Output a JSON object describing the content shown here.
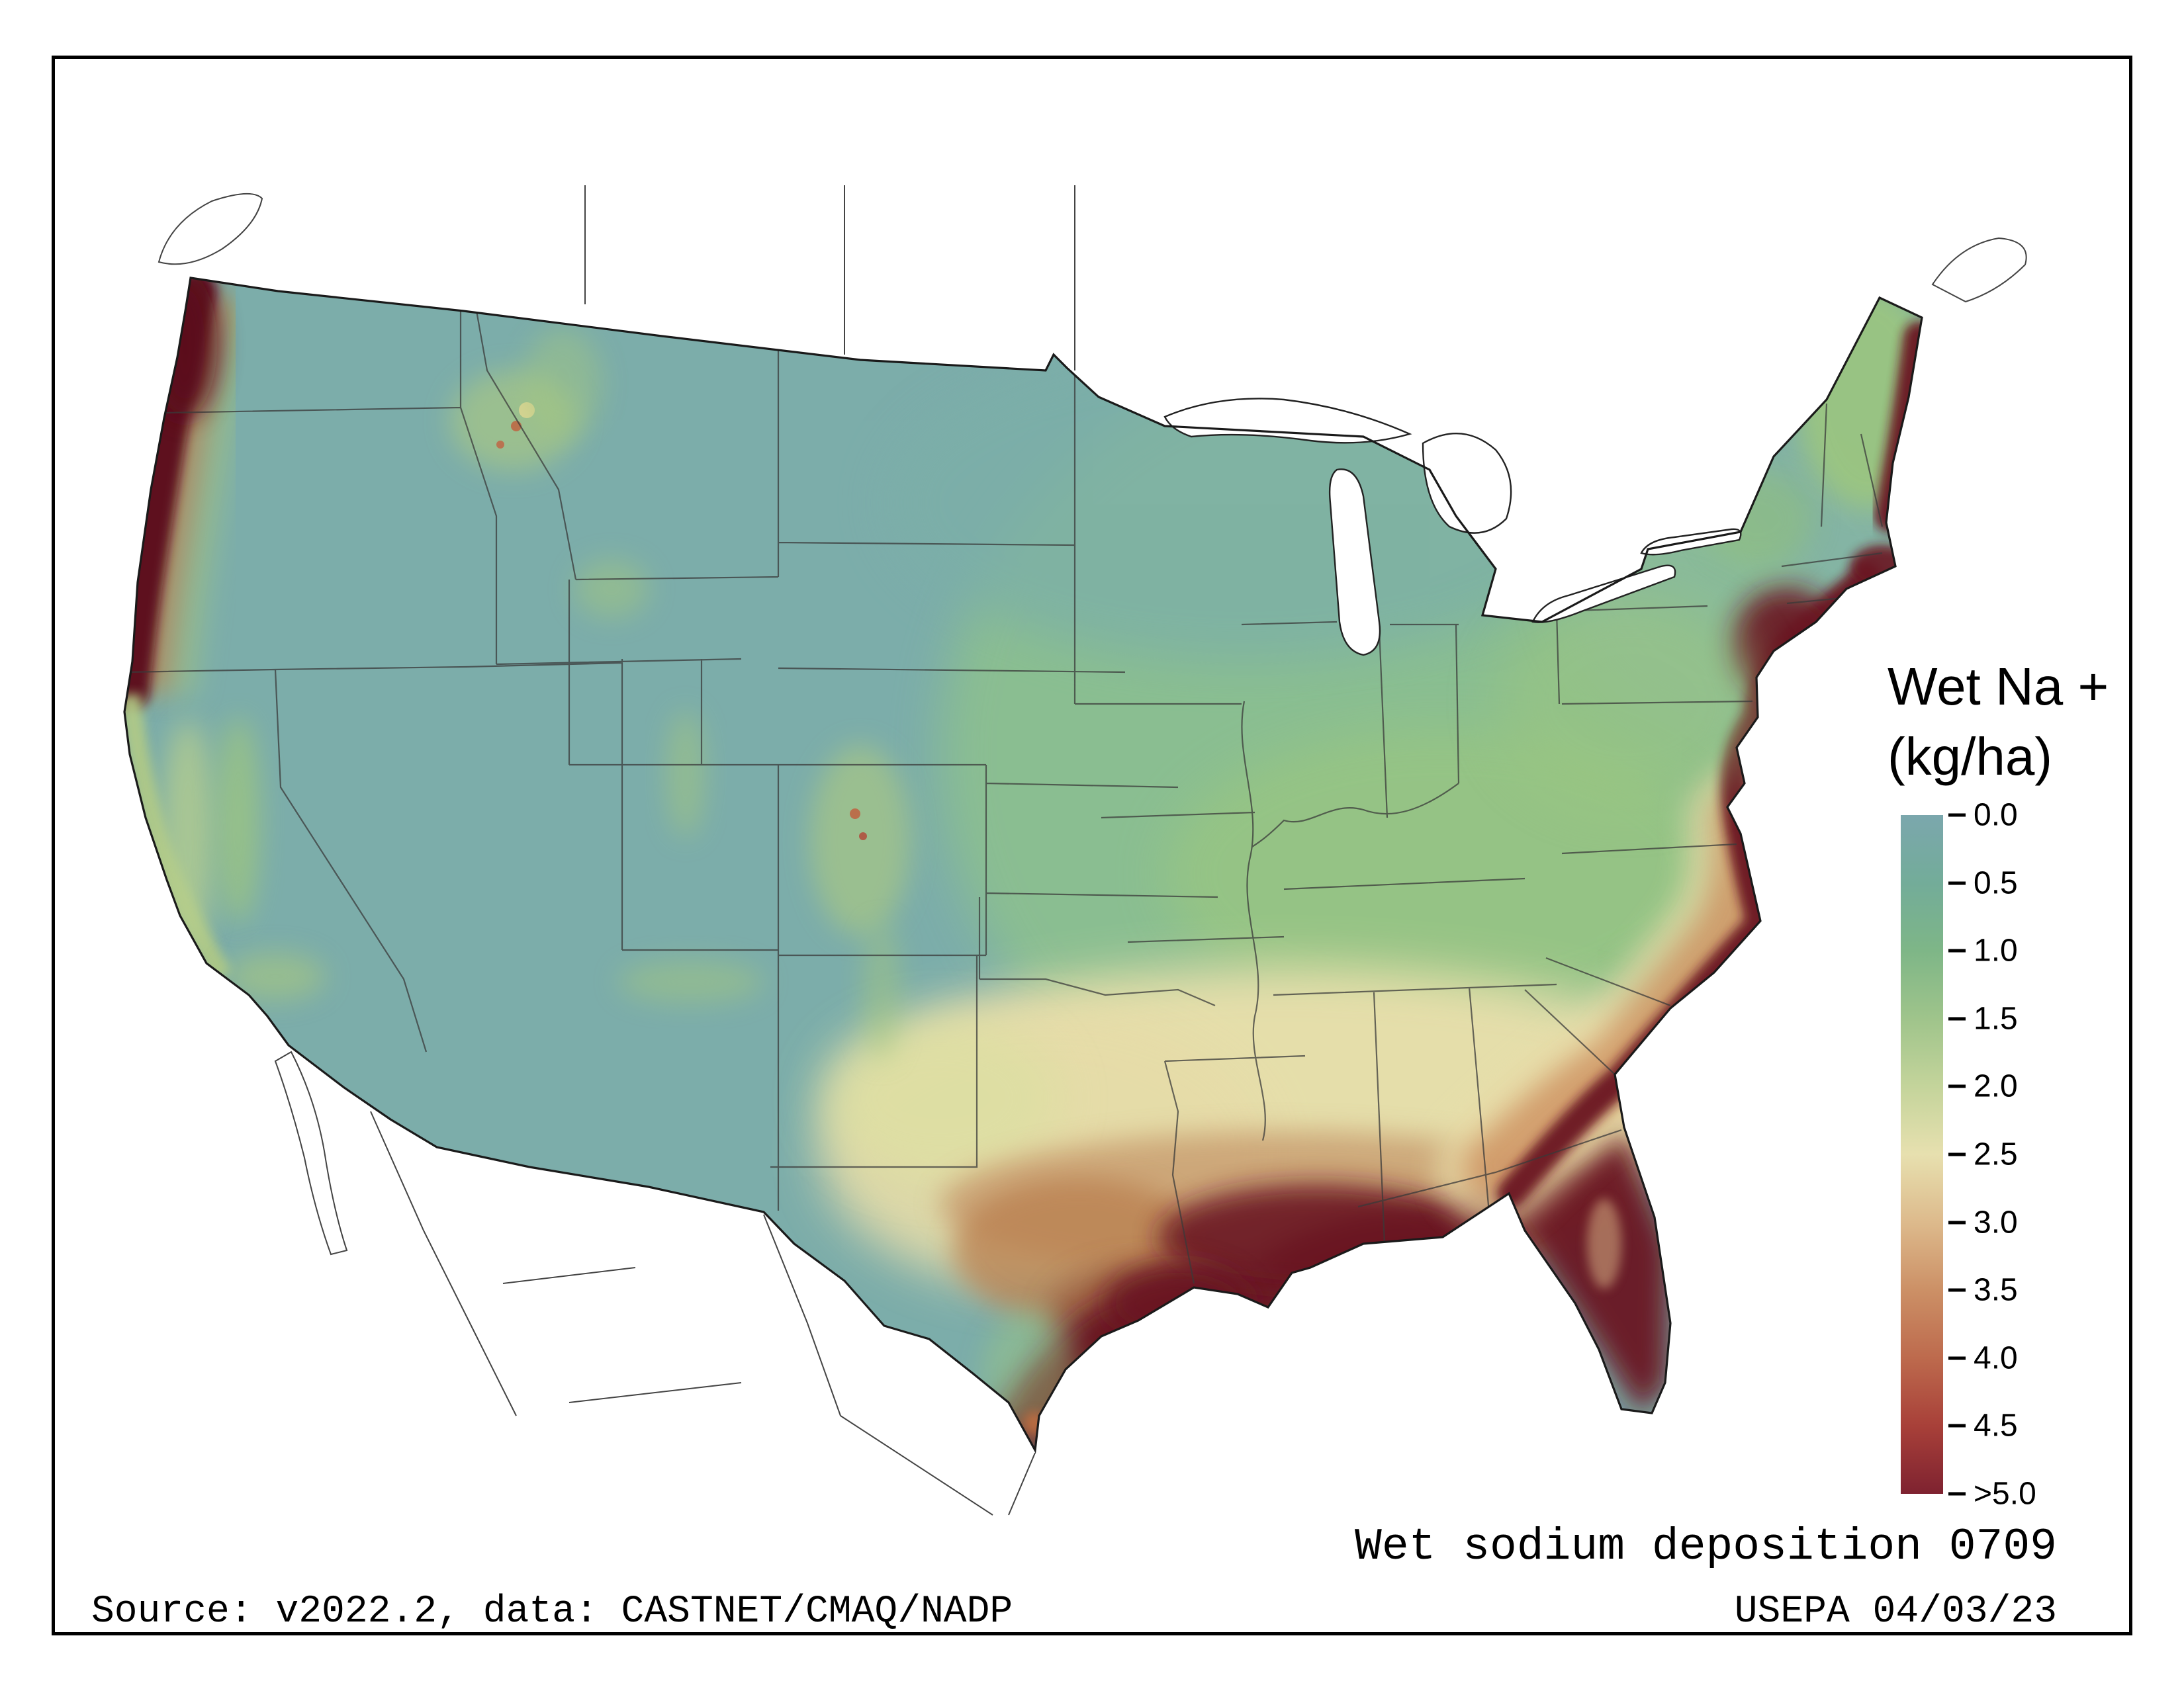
{
  "legend": {
    "title": "Wet Na +",
    "units": "(kg/ha)",
    "ticks": [
      "0.0",
      "0.5",
      "1.0",
      "1.5",
      "2.0",
      "2.5",
      "3.0",
      "3.5",
      "4.0",
      "4.5",
      ">5.0"
    ],
    "stops": [
      "#7BA7AD",
      "#73AC99",
      "#7EB687",
      "#9FC48B",
      "#C4D49B",
      "#E7E0AF",
      "#DDBA8C",
      "#CC9066",
      "#BD6A4D",
      "#A84039",
      "#7E2230"
    ]
  },
  "caption": "Wet sodium deposition 0709",
  "footer": {
    "source": "Source: v2022.2, data: CASTNET/CMAQ/NADP",
    "agency": "USEPA 04/03/23"
  },
  "map": {
    "region": "Continental United States",
    "variable": "Wet Na + deposition",
    "colors": {
      "low": "#7BA7AD",
      "mid": "#E7E0AF",
      "high": "#7E2230",
      "ocean": "#FFFFFF"
    }
  }
}
